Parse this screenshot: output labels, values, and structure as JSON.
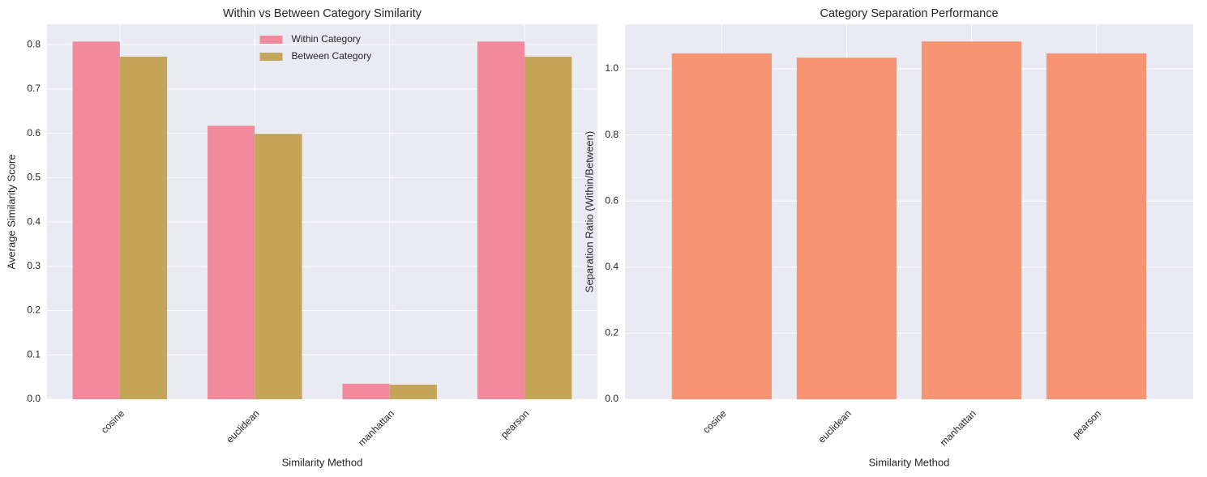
{
  "chart_data": [
    {
      "type": "bar",
      "title": "Within vs Between Category Similarity",
      "x_label": "Similarity Method",
      "y_label": "Average Similarity Score",
      "categories": [
        "cosine",
        "euclidean",
        "manhattan",
        "pearson"
      ],
      "series": [
        {
          "name": "Within Category",
          "color": "#f28a9e",
          "values": [
            0.807,
            0.617,
            0.035,
            0.807
          ]
        },
        {
          "name": "Between Category",
          "color": "#c4a55a",
          "values": [
            0.773,
            0.599,
            0.033,
            0.773
          ]
        }
      ],
      "ylim": [
        0,
        0.846
      ],
      "yticks": [
        {
          "value": 0,
          "label": "0.0"
        },
        0.1,
        0.2,
        0.3,
        0.4,
        0.5,
        0.6,
        0.7,
        0.8
      ],
      "grid": true,
      "legend": "upper center"
    },
    {
      "type": "bar",
      "title": "Category Separation Performance",
      "x_label": "Similarity Method",
      "y_label": "Separation Ratio (Within/Between)",
      "categories": [
        "cosine",
        "euclidean",
        "manhattan",
        "pearson"
      ],
      "values": [
        1.047,
        1.034,
        1.083,
        1.047
      ],
      "color": "#f79472",
      "ylim": [
        0,
        1.135
      ],
      "yticks": [
        {
          "value": 0,
          "label": "0.0"
        },
        0.2,
        0.4,
        0.6,
        0.8,
        {
          "value": 1,
          "label": "1.0"
        }
      ],
      "grid": true
    }
  ]
}
